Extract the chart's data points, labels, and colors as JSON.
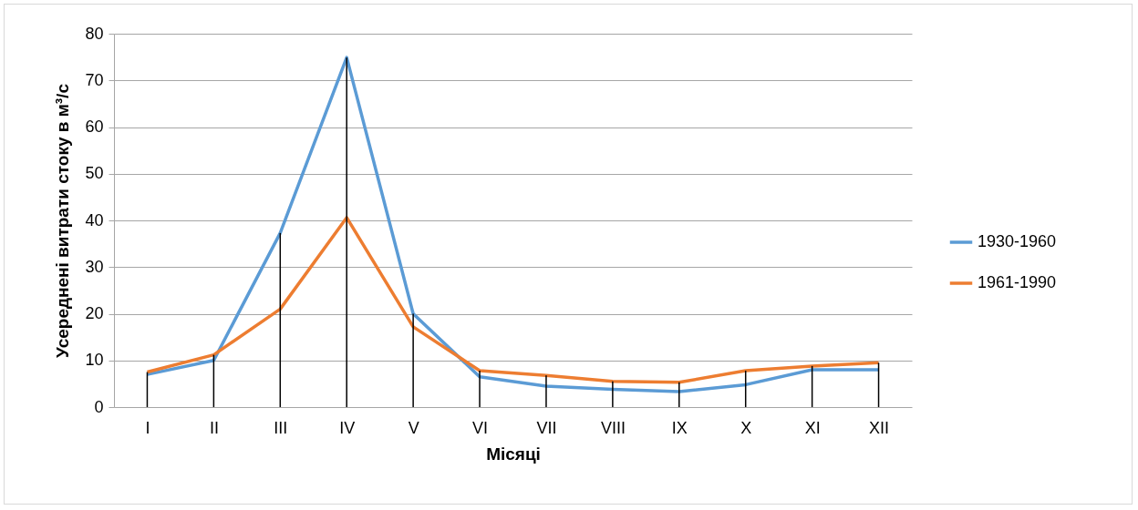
{
  "chart_data": {
    "type": "line",
    "ylabel": "Усереднені витрати стоку в м³/с",
    "xlabel": "Місяці",
    "categories": [
      "I",
      "II",
      "III",
      "IV",
      "V",
      "VI",
      "VII",
      "VIII",
      "IX",
      "X",
      "XI",
      "XII"
    ],
    "series": [
      {
        "type": "bar",
        "color": "#000000",
        "values": [
          7.5,
          11.2,
          37.3,
          74.9,
          20,
          7.8,
          6.8,
          5.5,
          5.3,
          7.8,
          8.8,
          9.5
        ]
      },
      {
        "name": "1930-1960",
        "color": "#5b9bd5",
        "values": [
          7,
          10,
          37.3,
          74.9,
          20,
          6.5,
          4.5,
          3.8,
          3.3,
          4.8,
          8,
          8
        ]
      },
      {
        "name": "1961-1990",
        "color": "#ed7d31",
        "values": [
          7.5,
          11.2,
          21,
          40.6,
          17.2,
          7.8,
          6.8,
          5.5,
          5.3,
          7.8,
          8.8,
          9.5
        ]
      }
    ],
    "ylim": [
      0,
      80
    ],
    "yticks": [
      0,
      10,
      20,
      30,
      40,
      50,
      60,
      70,
      80
    ],
    "grid": "y",
    "legend": "right",
    "marker": "none",
    "line_style": "solid"
  }
}
